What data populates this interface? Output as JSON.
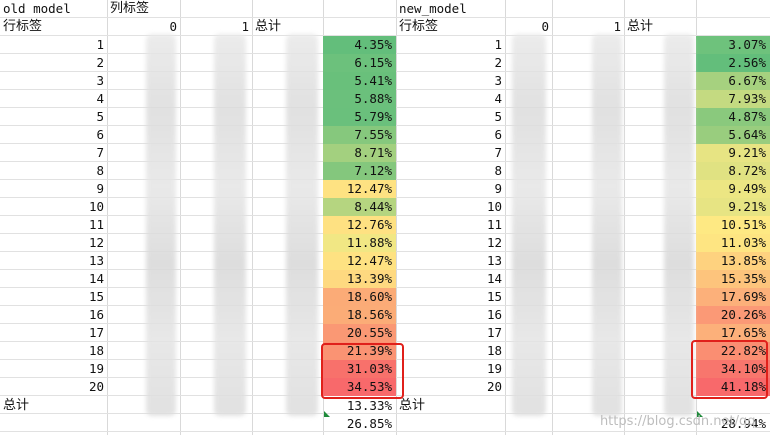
{
  "left": {
    "title": "old model",
    "col_header": "列标签",
    "row_header": "行标签",
    "col_0": "0",
    "col_1": "1",
    "total_col": "总计",
    "rows": [
      "1",
      "2",
      "3",
      "4",
      "5",
      "6",
      "7",
      "8",
      "9",
      "10",
      "11",
      "12",
      "13",
      "14",
      "15",
      "16",
      "17",
      "18",
      "19",
      "20"
    ],
    "pct": [
      "4.35%",
      "6.15%",
      "5.41%",
      "5.88%",
      "5.79%",
      "7.55%",
      "8.71%",
      "7.12%",
      "12.47%",
      "8.44%",
      "12.76%",
      "11.88%",
      "12.47%",
      "13.39%",
      "18.60%",
      "18.56%",
      "20.55%",
      "21.39%",
      "31.03%",
      "34.53%"
    ],
    "colors": [
      "#63be7b",
      "#6cc17c",
      "#69c07b",
      "#6bc07c",
      "#6ac07c",
      "#86c87d",
      "#a3d07f",
      "#84c77d",
      "#fee282",
      "#b5d580",
      "#fee182",
      "#f1e784",
      "#fee282",
      "#fed980",
      "#fbab77",
      "#fbac77",
      "#fa9874",
      "#fa9373",
      "#f8716b",
      "#f8696b"
    ],
    "grand_total_label": "总计",
    "grand_total_1": "13.33%",
    "grand_total_2": "26.85%"
  },
  "right": {
    "title": "new_model",
    "row_header": "行标签",
    "col_0": "0",
    "col_1": "1",
    "total_col": "总计",
    "rows": [
      "1",
      "2",
      "3",
      "4",
      "5",
      "6",
      "7",
      "8",
      "9",
      "10",
      "11",
      "12",
      "13",
      "14",
      "15",
      "16",
      "17",
      "18",
      "19",
      "20"
    ],
    "pct": [
      "3.07%",
      "2.56%",
      "6.67%",
      "7.93%",
      "4.87%",
      "5.64%",
      "9.21%",
      "8.72%",
      "9.49%",
      "9.21%",
      "10.51%",
      "11.03%",
      "13.85%",
      "15.35%",
      "17.69%",
      "20.26%",
      "17.65%",
      "22.82%",
      "34.10%",
      "41.18%"
    ],
    "colors": [
      "#6ec27c",
      "#63be7b",
      "#a6d17f",
      "#c4da81",
      "#8ac97d",
      "#99cd7e",
      "#e7e483",
      "#e0e282",
      "#ece683",
      "#e7e483",
      "#fee983",
      "#fee582",
      "#fed27f",
      "#fdc47c",
      "#fcb07a",
      "#fb9976",
      "#fcb07a",
      "#fa8e72",
      "#f8766d",
      "#f8696b"
    ],
    "grand_total_label": "总计",
    "grand_total_2": "28.94%"
  },
  "watermark": "https://blog.csdn.net/qq_"
}
